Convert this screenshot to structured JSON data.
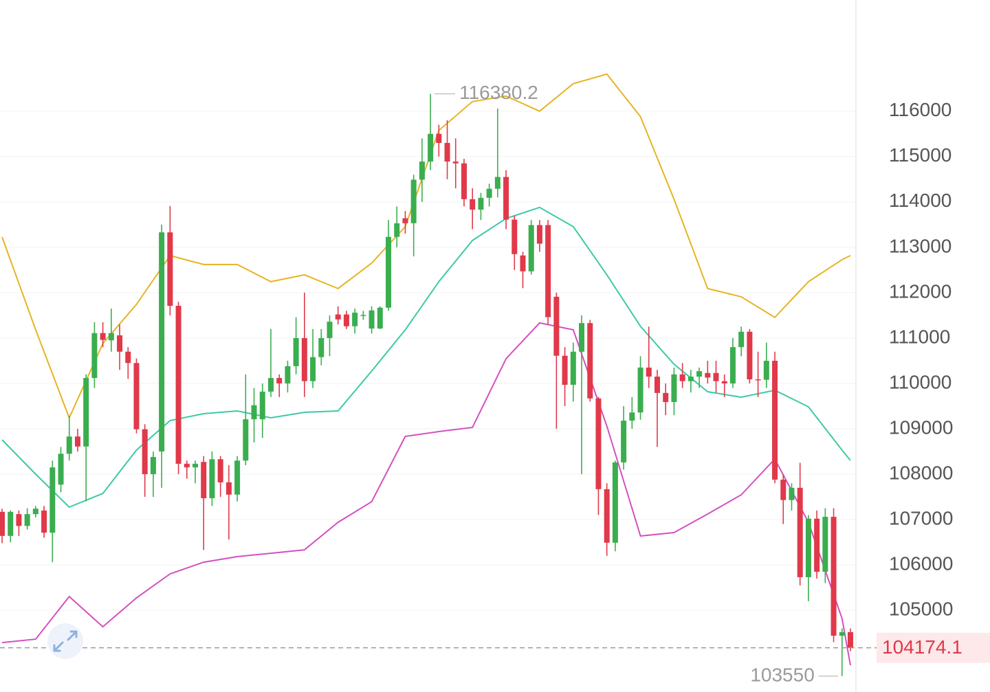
{
  "chart_data": {
    "type": "candlestick",
    "ylim": [
      103200,
      118450
    ],
    "yticks": [
      105000,
      106000,
      107000,
      108000,
      109000,
      110000,
      111000,
      112000,
      113000,
      114000,
      115000,
      116000
    ],
    "grid": true,
    "up_color": "#3aae4f",
    "down_color": "#e0394a",
    "candles": [
      [
        107170,
        107240,
        106480,
        106640
      ],
      [
        106640,
        107200,
        106500,
        107170
      ],
      [
        107120,
        107200,
        106640,
        106860
      ],
      [
        106860,
        107250,
        106780,
        107120
      ],
      [
        107120,
        107300,
        107050,
        107240
      ],
      [
        107200,
        107300,
        106600,
        106710
      ],
      [
        106710,
        108300,
        106060,
        108150
      ],
      [
        107770,
        108600,
        107600,
        108450
      ],
      [
        108450,
        109290,
        108300,
        108830
      ],
      [
        108830,
        109000,
        108500,
        108610
      ],
      [
        108610,
        110200,
        107400,
        110120
      ],
      [
        110120,
        111350,
        109900,
        111110
      ],
      [
        111110,
        111350,
        110800,
        110960
      ],
      [
        110950,
        111650,
        110700,
        111110
      ],
      [
        111060,
        111300,
        110300,
        110700
      ],
      [
        110700,
        110800,
        110100,
        110450
      ],
      [
        110450,
        110550,
        108900,
        108990
      ],
      [
        108990,
        109100,
        107500,
        108000
      ],
      [
        108000,
        108500,
        107500,
        108380
      ],
      [
        108500,
        113500,
        107700,
        113330
      ],
      [
        113330,
        113910,
        111500,
        111710
      ],
      [
        111710,
        111800,
        108000,
        108230
      ],
      [
        108230,
        108300,
        107900,
        108150
      ],
      [
        108150,
        108300,
        107800,
        108230
      ],
      [
        108270,
        108400,
        106330,
        107470
      ],
      [
        107470,
        108500,
        107300,
        108330
      ],
      [
        108330,
        108400,
        107500,
        107820
      ],
      [
        107820,
        108200,
        106560,
        107550
      ],
      [
        107550,
        108400,
        107400,
        108300
      ],
      [
        108300,
        110200,
        108200,
        109210
      ],
      [
        109210,
        109900,
        108700,
        109520
      ],
      [
        109210,
        110000,
        108800,
        109820
      ],
      [
        109820,
        111200,
        109700,
        110120
      ],
      [
        110120,
        110200,
        109700,
        110000
      ],
      [
        110000,
        110500,
        109800,
        110380
      ],
      [
        110380,
        111460,
        110200,
        111000
      ],
      [
        111000,
        112000,
        109700,
        110050
      ],
      [
        110050,
        111200,
        109900,
        110580
      ],
      [
        110580,
        111200,
        110400,
        111000
      ],
      [
        111000,
        111500,
        110600,
        111360
      ],
      [
        111520,
        111700,
        111300,
        111410
      ],
      [
        111520,
        111600,
        111200,
        111260
      ],
      [
        111260,
        111650,
        111100,
        111560
      ],
      [
        111500,
        111600,
        111400,
        111510
      ],
      [
        111210,
        111700,
        111100,
        111610
      ],
      [
        111210,
        111700,
        111200,
        111670
      ],
      [
        111670,
        113600,
        111600,
        113230
      ],
      [
        113230,
        113900,
        113000,
        113530
      ],
      [
        113640,
        113800,
        113300,
        113530
      ],
      [
        113530,
        114600,
        112800,
        114490
      ],
      [
        114490,
        115400,
        114000,
        114890
      ],
      [
        114890,
        116380.2,
        114700,
        115500
      ],
      [
        115500,
        115700,
        115000,
        115300
      ],
      [
        115300,
        115800,
        114500,
        114890
      ],
      [
        114890,
        115400,
        114300,
        114850
      ],
      [
        114850,
        114950,
        113900,
        114060
      ],
      [
        114060,
        114300,
        113400,
        113830
      ],
      [
        113830,
        114200,
        113600,
        114090
      ],
      [
        114090,
        114400,
        113900,
        114290
      ],
      [
        114290,
        116060,
        114100,
        114550
      ],
      [
        114550,
        114700,
        113400,
        113610
      ],
      [
        113610,
        113700,
        112500,
        112850
      ],
      [
        112820,
        112900,
        112100,
        112470
      ],
      [
        112470,
        113600,
        112400,
        113490
      ],
      [
        113490,
        113600,
        112900,
        113080
      ],
      [
        113490,
        113600,
        111300,
        111460
      ],
      [
        111910,
        112000,
        109000,
        110610
      ],
      [
        110610,
        110800,
        109500,
        109970
      ],
      [
        109970,
        110900,
        109600,
        110700
      ],
      [
        110700,
        111500,
        108000,
        111330
      ],
      [
        111330,
        111400,
        109600,
        109670
      ],
      [
        109670,
        109700,
        107100,
        107670
      ],
      [
        107670,
        107800,
        106200,
        106490
      ],
      [
        106490,
        108300,
        106300,
        108260
      ],
      [
        108260,
        109500,
        108100,
        109180
      ],
      [
        109180,
        109700,
        109000,
        109360
      ],
      [
        109360,
        110600,
        109200,
        110350
      ],
      [
        110350,
        111250,
        109900,
        110150
      ],
      [
        110150,
        110300,
        108600,
        109790
      ],
      [
        109790,
        110000,
        109300,
        109590
      ],
      [
        109590,
        110350,
        109300,
        110200
      ],
      [
        110200,
        110450,
        109900,
        110050
      ],
      [
        110050,
        110300,
        109800,
        110150
      ],
      [
        110150,
        110350,
        109900,
        110270
      ],
      [
        110230,
        110500,
        110000,
        110130
      ],
      [
        110230,
        110500,
        109800,
        110050
      ],
      [
        110050,
        110200,
        109700,
        110000
      ],
      [
        110000,
        111000,
        109900,
        110800
      ],
      [
        110800,
        111250,
        110600,
        111140
      ],
      [
        111140,
        111200,
        110000,
        110090
      ],
      [
        110090,
        110700,
        109700,
        110080
      ],
      [
        110080,
        110900,
        109900,
        110500
      ],
      [
        110500,
        110700,
        107800,
        107880
      ],
      [
        107880,
        108000,
        106900,
        107430
      ],
      [
        107430,
        107800,
        107200,
        107700
      ],
      [
        107700,
        108250,
        105550,
        105730
      ],
      [
        105730,
        107100,
        105200,
        107020
      ],
      [
        107020,
        107200,
        105700,
        105850
      ],
      [
        105850,
        107250,
        105600,
        107060
      ],
      [
        107060,
        107250,
        104300,
        104440
      ],
      [
        104440,
        104600,
        103550.0,
        104520
      ],
      [
        104520,
        104600,
        104100,
        104174.1
      ]
    ],
    "bands": {
      "x": [
        0,
        4,
        8,
        12,
        16,
        20,
        24,
        28,
        32,
        36,
        40,
        44,
        48,
        52,
        56,
        60,
        64,
        68,
        72,
        76,
        80,
        84,
        88,
        92,
        96,
        100,
        101
      ],
      "series": [
        {
          "color": "#e6b422",
          "values": [
            113227,
            111182,
            109243,
            110879,
            111743,
            112818,
            112621,
            112621,
            112243,
            112394,
            112091,
            112652,
            113455,
            115576,
            116212,
            116333,
            116000,
            116606,
            116818,
            115879,
            114060,
            112091,
            111909,
            111455,
            112243,
            112727,
            112818
          ]
        },
        {
          "color": "#3cc9a6",
          "values": [
            108758,
            108000,
            107273,
            107576,
            108531,
            109182,
            109334,
            109394,
            109243,
            109364,
            109394,
            110273,
            111182,
            112243,
            113151,
            113636,
            113879,
            113455,
            112394,
            111258,
            110424,
            109818,
            109697,
            109849,
            109485,
            108531,
            108303
          ]
        },
        {
          "color": "#d44fbf",
          "values": [
            104289,
            104364,
            105304,
            104637,
            105274,
            105804,
            106061,
            106183,
            106258,
            106334,
            106940,
            107394,
            108834,
            108940,
            109031,
            110546,
            111334,
            111182,
            109061,
            106637,
            106713,
            107122,
            107546,
            108334,
            106940,
            104819,
            103789
          ]
        }
      ]
    }
  }
}
